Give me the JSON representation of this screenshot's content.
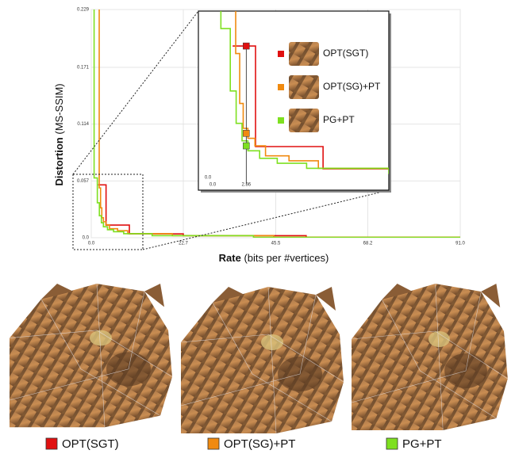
{
  "chart_data": {
    "type": "step-line",
    "ylabel": {
      "main": "Distortion",
      "detail": "(MS-SSIM)"
    },
    "xlabel": {
      "main": "Rate",
      "detail": "(bits per #vertices)"
    },
    "xlim": [
      0,
      91
    ],
    "ylim": [
      0,
      0.229
    ],
    "xticks": [
      {
        "value": 0,
        "label": "0.0"
      },
      22.7,
      45.5,
      68.2,
      {
        "value": 91,
        "label": "91.0"
      }
    ],
    "yticks": [
      {
        "value": 0,
        "label": "0.0"
      },
      0.057,
      0.114,
      0.171,
      0.229
    ],
    "grid": true,
    "series": [
      {
        "name": "OPT(SGT)",
        "color": "#e01010",
        "x": [
          1.7,
          3.65,
          3.65,
          9.4,
          9.4,
          22.7,
          22.7,
          53,
          53,
          91
        ],
        "values": [
          0.053,
          0.053,
          0.0127,
          0.0127,
          0.0038,
          0.0038,
          0.002,
          0.002,
          0.0005,
          0.0005
        ]
      },
      {
        "name": "OPT(SG)+PT",
        "color": "#f08a10",
        "x": [
          1.96,
          1.96,
          2.3,
          2.3,
          2.6,
          2.6,
          3.0,
          3.0,
          3.6,
          3.6,
          4.5,
          4.5,
          6.5,
          6.5,
          9.0,
          9.0,
          20,
          20,
          45,
          45,
          91
        ],
        "values": [
          0.229,
          0.05,
          0.05,
          0.03,
          0.03,
          0.02,
          0.02,
          0.016,
          0.016,
          0.013,
          0.013,
          0.009,
          0.009,
          0.007,
          0.007,
          0.004,
          0.004,
          0.002,
          0.002,
          0.0005,
          0.0005
        ]
      },
      {
        "name": "PG+PT",
        "color": "#7ee020",
        "x": [
          0.7,
          0.7,
          1.5,
          1.5,
          2.0,
          2.0,
          2.5,
          2.5,
          3.0,
          3.0,
          4.0,
          4.0,
          5.5,
          5.5,
          8.0,
          8.0,
          15,
          15,
          40,
          40,
          91
        ],
        "values": [
          0.229,
          0.06,
          0.06,
          0.035,
          0.035,
          0.022,
          0.022,
          0.015,
          0.015,
          0.011,
          0.011,
          0.008,
          0.008,
          0.006,
          0.006,
          0.004,
          0.004,
          0.002,
          0.002,
          0.0004,
          0.0004
        ]
      }
    ],
    "inset": {
      "xlim": [
        0,
        15
      ],
      "ylim": [
        0,
        0.067
      ],
      "xticks": [
        {
          "value": 0,
          "label": "0.0"
        },
        2.86
      ],
      "yticks": [
        {
          "value": 0,
          "label": "0.0"
        }
      ],
      "marker_values": [
        0.053,
        0.018,
        0.013
      ]
    }
  }
}
